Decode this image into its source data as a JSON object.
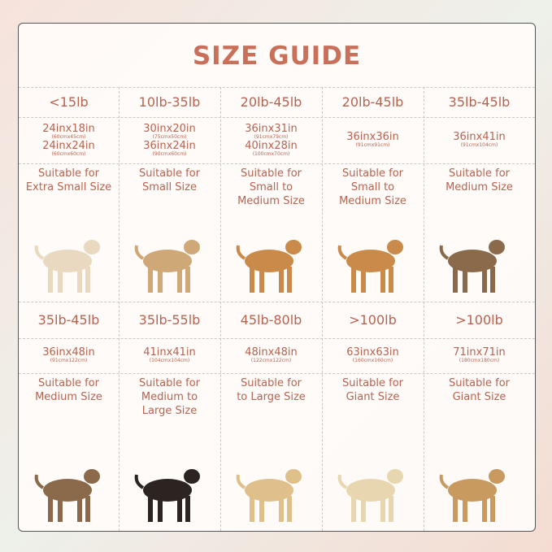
{
  "title": "SIZE GUIDE",
  "cells": [
    {
      "weight": "<15lb",
      "sizes": [
        {
          "main": "24inx18in",
          "sub": "(60cmx45cm)"
        },
        {
          "main": "24inx24in",
          "sub": "(60cmx60cm)"
        }
      ],
      "suitability": [
        "Suitable for",
        "Extra Small Size"
      ]
    },
    {
      "weight": "10lb-35lb",
      "sizes": [
        {
          "main": "30inx20in",
          "sub": "(75cmx50cm)"
        },
        {
          "main": "36inx24in",
          "sub": "(90cmx60cm)"
        }
      ],
      "suitability": [
        "Suitable for",
        "Small Size"
      ]
    },
    {
      "weight": "20lb-45lb",
      "sizes": [
        {
          "main": "36inx31in",
          "sub": "(91cmx79cm)"
        },
        {
          "main": "40inx28in",
          "sub": "(100cmx70cm)"
        }
      ],
      "suitability": [
        "Suitable for",
        "Small to",
        "Medium Size"
      ]
    },
    {
      "weight": "20lb-45lb",
      "sizes": [
        {
          "main": "36inx36in",
          "sub": "(91cmx91cm)"
        }
      ],
      "suitability": [
        "Suitable for",
        "Small to",
        "Medium Size"
      ]
    },
    {
      "weight": "35lb-45lb",
      "sizes": [
        {
          "main": "36inx41in",
          "sub": "(91cmx104cm)"
        }
      ],
      "suitability": [
        "Suitable for",
        "Medium Size"
      ]
    },
    {
      "weight": "35lb-45lb",
      "sizes": [
        {
          "main": "36inx48in",
          "sub": "(91cmx122cm)"
        }
      ],
      "suitability": [
        "Suitable for",
        "Medium Size"
      ]
    },
    {
      "weight": "35lb-55lb",
      "sizes": [
        {
          "main": "41inx41in",
          "sub": "(104cmx104cm)"
        }
      ],
      "suitability": [
        "Suitable for",
        "Medium to",
        "Large Size"
      ]
    },
    {
      "weight": "45lb-80lb",
      "sizes": [
        {
          "main": "48inx48in",
          "sub": "(122cmx122cm)"
        }
      ],
      "suitability": [
        "Suitable for",
        "to Large Size"
      ]
    },
    {
      "weight": ">100lb",
      "sizes": [
        {
          "main": "63inx63in",
          "sub": "(160cmx160cm)"
        }
      ],
      "suitability": [
        "Suitable for",
        "Giant Size"
      ]
    },
    {
      "weight": ">100lb",
      "sizes": [
        {
          "main": "71inx71in",
          "sub": "(180cmx180cm)"
        }
      ],
      "suitability": [
        "Suitable for",
        "Giant Size"
      ]
    }
  ]
}
